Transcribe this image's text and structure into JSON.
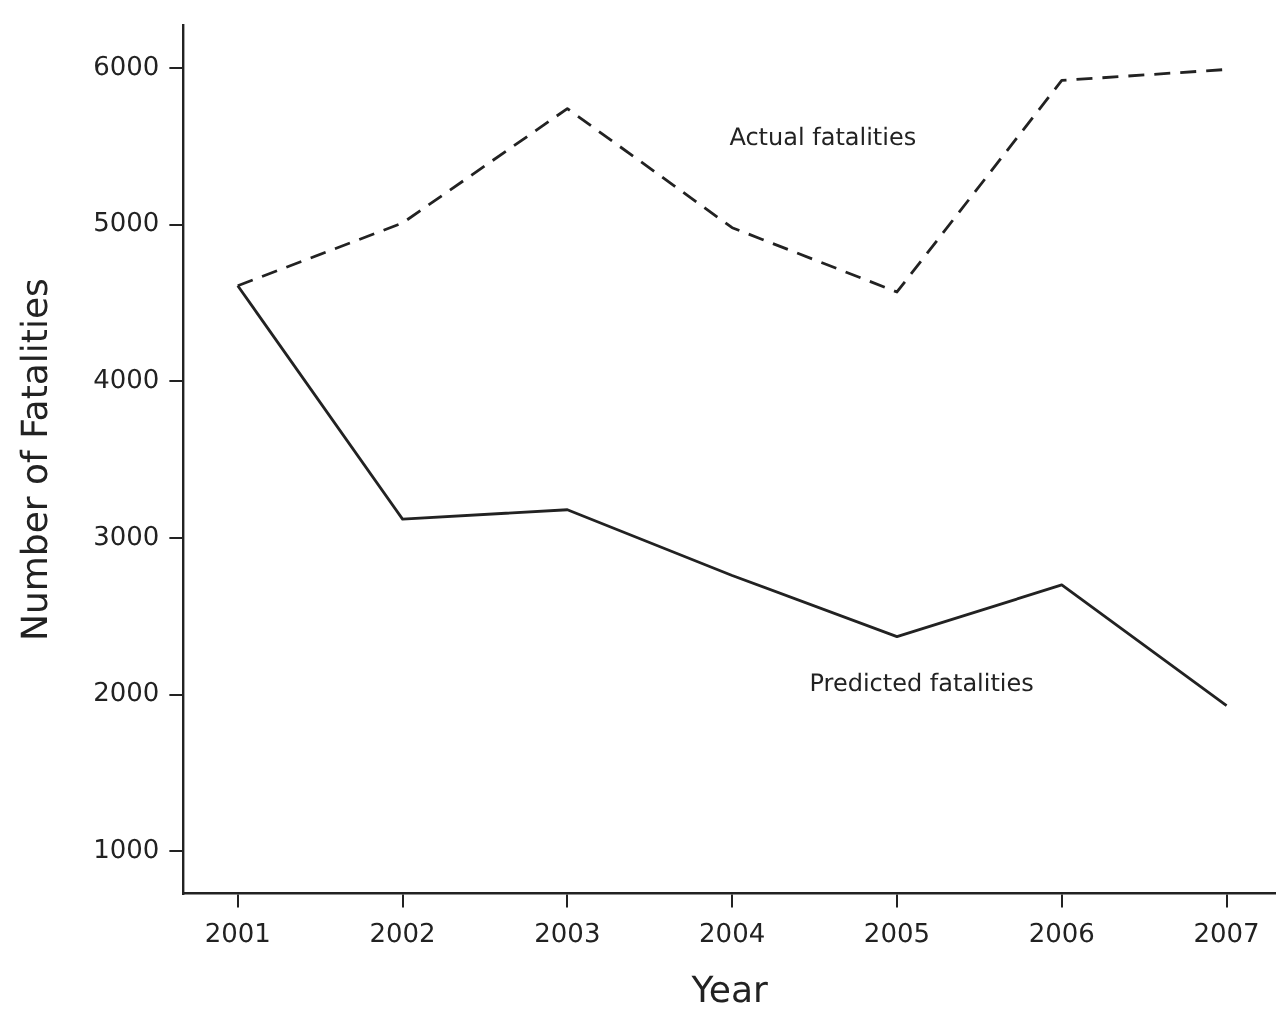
{
  "chart_data": {
    "type": "line",
    "xlabel": "Year",
    "ylabel": "Number of Fatalities",
    "x": [
      2001,
      2002,
      2003,
      2004,
      2005,
      2006,
      2007
    ],
    "series": [
      {
        "name": "Actual fatalities",
        "color": "#222222",
        "line_style": "dashed",
        "values": [
          4610,
          5010,
          5740,
          4980,
          4570,
          5920,
          5990
        ]
      },
      {
        "name": "Predicted fatalities",
        "color": "#222222",
        "line_style": "solid",
        "values": [
          4610,
          3120,
          3180,
          2760,
          2370,
          2700,
          1930
        ]
      }
    ],
    "xlim": [
      2000.67,
      2007.3
    ],
    "xticks": [
      2001,
      2002,
      2003,
      2004,
      2005,
      2006,
      2007
    ],
    "ylim": [
      730,
      6270
    ],
    "yticks": [
      1000,
      2000,
      3000,
      4000,
      5000,
      6000
    ],
    "grid": false,
    "legend": false,
    "marker": "none"
  }
}
